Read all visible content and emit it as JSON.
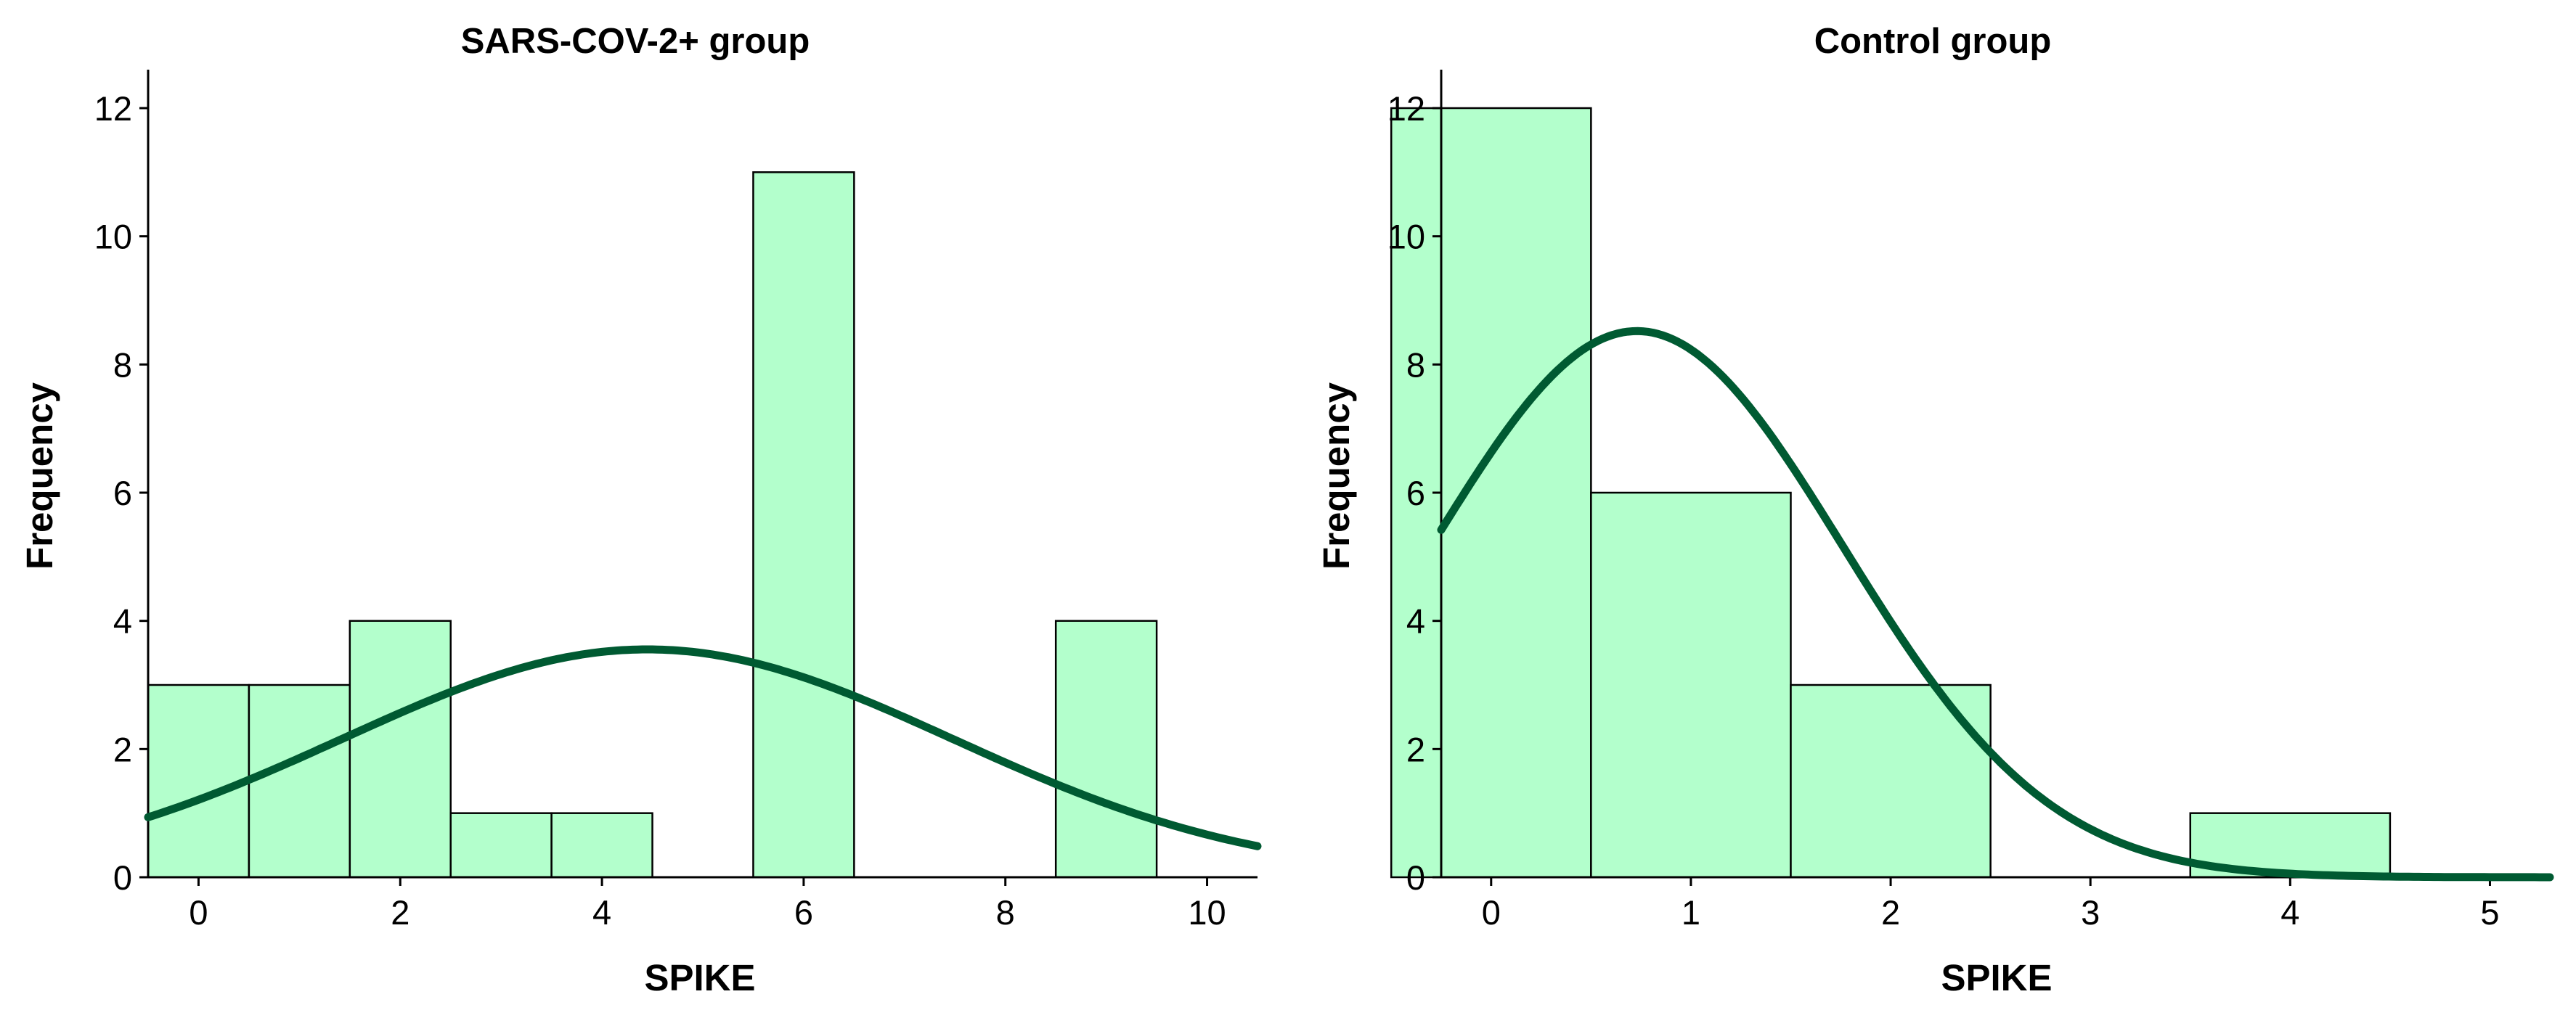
{
  "chart_data": [
    {
      "type": "bar",
      "title": "SARS-COV-2+ group",
      "xlabel": "SPIKE",
      "ylabel": "Frequency",
      "bin_width": 1,
      "bins": [
        {
          "x": 0,
          "value": 3
        },
        {
          "x": 1,
          "value": 3
        },
        {
          "x": 2,
          "value": 4
        },
        {
          "x": 3,
          "value": 1
        },
        {
          "x": 4,
          "value": 1
        },
        {
          "x": 6,
          "value": 11
        },
        {
          "x": 9,
          "value": 4
        }
      ],
      "xlim": [
        -0.5,
        10.5
      ],
      "ylim": [
        0,
        12.6
      ],
      "xticks": [
        "0",
        "2",
        "4",
        "6",
        "8",
        "10"
      ],
      "yticks": [
        "0",
        "2",
        "4",
        "6",
        "8",
        "10",
        "12"
      ],
      "normal_curve": {
        "mean": 4.45,
        "sd": 3.03,
        "n": 27
      },
      "bar_color": "#b3ffcc",
      "curve_color": "#005a32"
    },
    {
      "type": "bar",
      "title": "Control group",
      "xlabel": "SPIKE",
      "ylabel": "Frequency",
      "bin_width": 1,
      "bins": [
        {
          "x": 0,
          "value": 12
        },
        {
          "x": 1,
          "value": 6
        },
        {
          "x": 2,
          "value": 3
        },
        {
          "x": 4,
          "value": 1
        }
      ],
      "xlim": [
        -0.25,
        5.3
      ],
      "ylim": [
        0,
        12.6
      ],
      "xticks": [
        "0",
        "1",
        "2",
        "3",
        "4",
        "5"
      ],
      "yticks": [
        "0",
        "2",
        "4",
        "6",
        "8",
        "10",
        "12"
      ],
      "normal_curve": {
        "mean": 0.73,
        "sd": 1.03,
        "n": 22
      },
      "bar_color": "#b3ffcc",
      "curve_color": "#005a32"
    }
  ]
}
